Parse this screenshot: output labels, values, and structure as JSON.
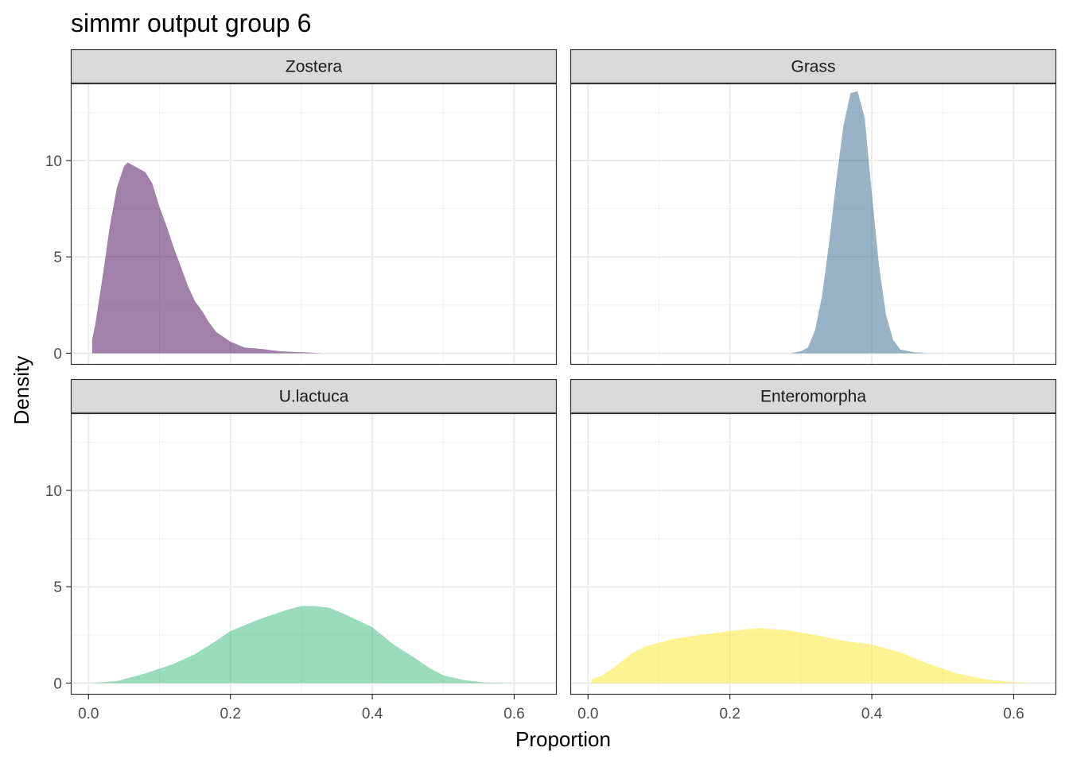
{
  "chart_data": {
    "type": "area",
    "title": "simmr output group 6",
    "xlabel": "Proportion",
    "ylabel": "Density",
    "xlim": [
      -0.025,
      0.66
    ],
    "ylim": [
      -0.6,
      14
    ],
    "x_ticks": [
      0.0,
      0.2,
      0.4,
      0.6
    ],
    "x_tick_labels": [
      "0.0",
      "0.2",
      "0.4",
      "0.6"
    ],
    "y_ticks": [
      0,
      5,
      10
    ],
    "y_tick_labels": [
      "0",
      "5",
      "10"
    ],
    "grid": true,
    "legend": "none",
    "facets": [
      {
        "name": "Zostera",
        "color": "#440154",
        "points": [
          [
            0.005,
            0
          ],
          [
            0.005,
            0.7
          ],
          [
            0.01,
            1.6
          ],
          [
            0.02,
            4.0
          ],
          [
            0.03,
            6.6
          ],
          [
            0.04,
            8.6
          ],
          [
            0.05,
            9.7
          ],
          [
            0.055,
            9.9
          ],
          [
            0.065,
            9.7
          ],
          [
            0.08,
            9.4
          ],
          [
            0.09,
            8.8
          ],
          [
            0.1,
            7.6
          ],
          [
            0.11,
            6.6
          ],
          [
            0.12,
            5.5
          ],
          [
            0.13,
            4.5
          ],
          [
            0.14,
            3.5
          ],
          [
            0.15,
            2.7
          ],
          [
            0.16,
            2.2
          ],
          [
            0.17,
            1.6
          ],
          [
            0.18,
            1.1
          ],
          [
            0.2,
            0.6
          ],
          [
            0.22,
            0.3
          ],
          [
            0.25,
            0.2
          ],
          [
            0.27,
            0.1
          ],
          [
            0.3,
            0.05
          ],
          [
            0.33,
            0
          ]
        ]
      },
      {
        "name": "Grass",
        "color": "#31688E",
        "points": [
          [
            0.285,
            0
          ],
          [
            0.3,
            0.1
          ],
          [
            0.31,
            0.3
          ],
          [
            0.32,
            1.2
          ],
          [
            0.33,
            3.0
          ],
          [
            0.34,
            5.8
          ],
          [
            0.35,
            9.0
          ],
          [
            0.36,
            11.8
          ],
          [
            0.37,
            13.5
          ],
          [
            0.38,
            13.6
          ],
          [
            0.39,
            12.2
          ],
          [
            0.4,
            8.3
          ],
          [
            0.41,
            4.6
          ],
          [
            0.42,
            2.0
          ],
          [
            0.43,
            0.7
          ],
          [
            0.44,
            0.2
          ],
          [
            0.46,
            0.05
          ],
          [
            0.48,
            0
          ]
        ]
      },
      {
        "name": "U.lactuca",
        "color": "#35B779",
        "points": [
          [
            0.0,
            0
          ],
          [
            0.04,
            0.1
          ],
          [
            0.08,
            0.5
          ],
          [
            0.12,
            1.0
          ],
          [
            0.15,
            1.5
          ],
          [
            0.18,
            2.2
          ],
          [
            0.2,
            2.7
          ],
          [
            0.24,
            3.3
          ],
          [
            0.28,
            3.8
          ],
          [
            0.3,
            4.0
          ],
          [
            0.32,
            4.0
          ],
          [
            0.34,
            3.9
          ],
          [
            0.36,
            3.6
          ],
          [
            0.4,
            2.9
          ],
          [
            0.43,
            2.0
          ],
          [
            0.46,
            1.3
          ],
          [
            0.48,
            0.8
          ],
          [
            0.5,
            0.4
          ],
          [
            0.53,
            0.15
          ],
          [
            0.56,
            0.03
          ],
          [
            0.6,
            0
          ]
        ]
      },
      {
        "name": "Enteromorpha",
        "color": "#FDE725",
        "points": [
          [
            0.005,
            0
          ],
          [
            0.005,
            0.2
          ],
          [
            0.02,
            0.4
          ],
          [
            0.04,
            0.9
          ],
          [
            0.06,
            1.5
          ],
          [
            0.08,
            1.9
          ],
          [
            0.1,
            2.1
          ],
          [
            0.12,
            2.3
          ],
          [
            0.14,
            2.4
          ],
          [
            0.16,
            2.5
          ],
          [
            0.2,
            2.7
          ],
          [
            0.24,
            2.85
          ],
          [
            0.28,
            2.75
          ],
          [
            0.32,
            2.5
          ],
          [
            0.36,
            2.2
          ],
          [
            0.4,
            2.0
          ],
          [
            0.44,
            1.6
          ],
          [
            0.48,
            1.0
          ],
          [
            0.52,
            0.5
          ],
          [
            0.56,
            0.2
          ],
          [
            0.6,
            0.05
          ],
          [
            0.625,
            0
          ]
        ]
      }
    ]
  }
}
